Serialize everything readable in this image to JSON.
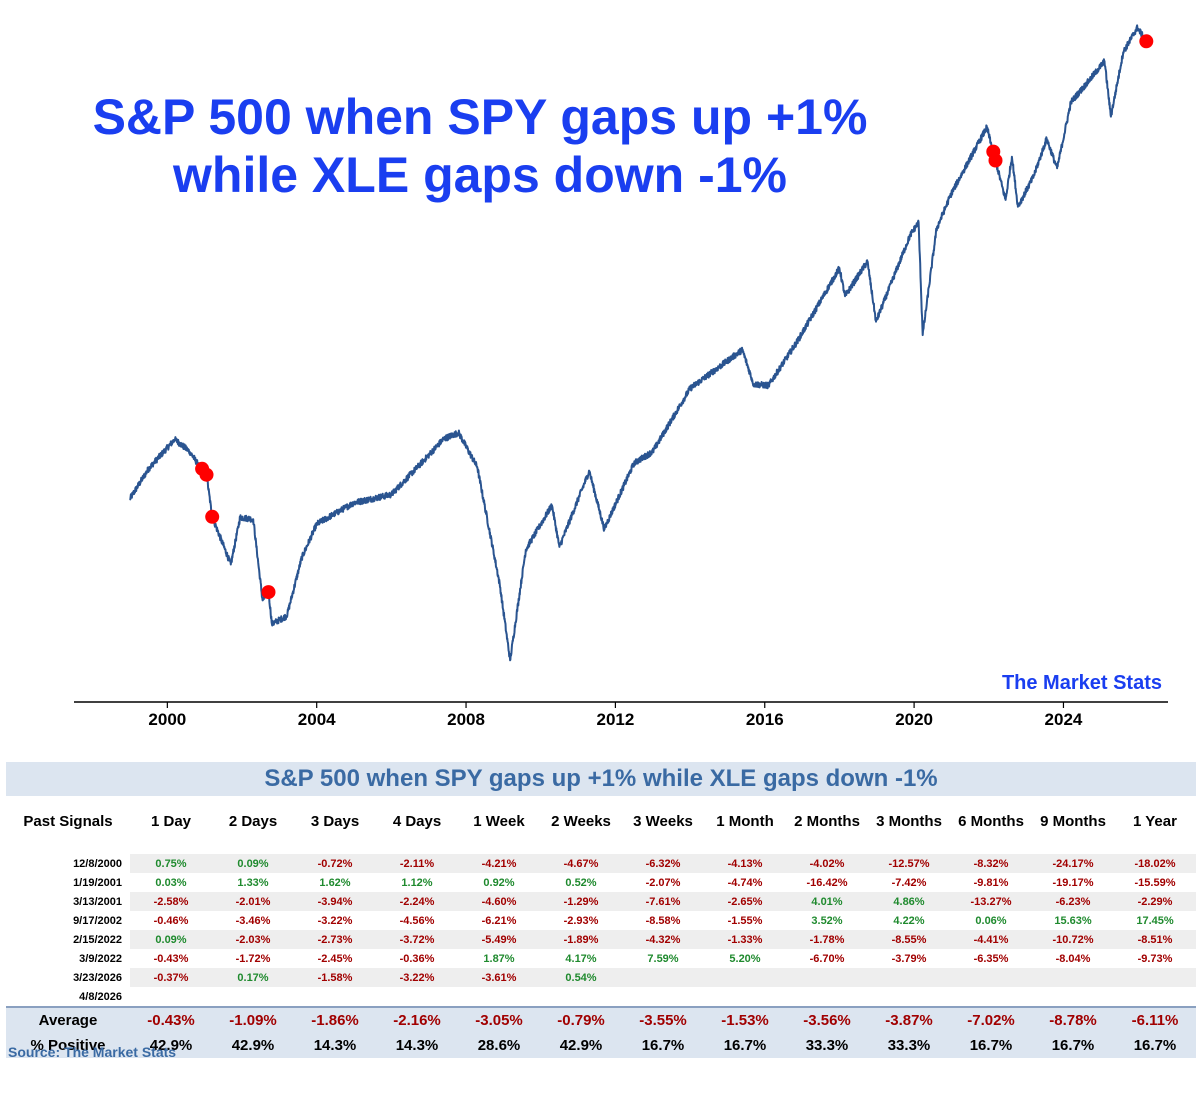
{
  "headline": {
    "line1": "S&P 500 when SPY gaps up +1%",
    "line2": "while XLE gaps down -1%"
  },
  "watermark": "The Market Stats",
  "colors": {
    "line": "#2a5490",
    "signal_marker": "#ff0000",
    "headline": "#1a3ef0",
    "positive": "#1f8a2e",
    "negative": "#a10000",
    "table_header_bg": "#dce5f0"
  },
  "chart_data": {
    "type": "line",
    "series": [
      {
        "values": [
          {
            "x": 1999.0,
            "y": 1229
          },
          {
            "x": 1999.5,
            "y": 1372
          },
          {
            "x": 2000.2,
            "y": 1527
          },
          {
            "x": 2000.6,
            "y": 1460
          },
          {
            "x": 2000.9,
            "y": 1371
          },
          {
            "x": 2001.05,
            "y": 1342
          },
          {
            "x": 2001.2,
            "y": 1150
          },
          {
            "x": 2001.7,
            "y": 966
          },
          {
            "x": 2001.95,
            "y": 1148
          },
          {
            "x": 2002.3,
            "y": 1140
          },
          {
            "x": 2002.55,
            "y": 847
          },
          {
            "x": 2002.71,
            "y": 873
          },
          {
            "x": 2002.8,
            "y": 777
          },
          {
            "x": 2003.2,
            "y": 800
          },
          {
            "x": 2003.6,
            "y": 990
          },
          {
            "x": 2004.0,
            "y": 1120
          },
          {
            "x": 2005.0,
            "y": 1211
          },
          {
            "x": 2006.0,
            "y": 1248
          },
          {
            "x": 2006.9,
            "y": 1420
          },
          {
            "x": 2007.4,
            "y": 1530
          },
          {
            "x": 2007.8,
            "y": 1565
          },
          {
            "x": 2008.3,
            "y": 1380
          },
          {
            "x": 2008.9,
            "y": 900
          },
          {
            "x": 2009.18,
            "y": 680
          },
          {
            "x": 2009.6,
            "y": 1020
          },
          {
            "x": 2010.3,
            "y": 1200
          },
          {
            "x": 2010.5,
            "y": 1030
          },
          {
            "x": 2011.3,
            "y": 1360
          },
          {
            "x": 2011.7,
            "y": 1100
          },
          {
            "x": 2012.5,
            "y": 1400
          },
          {
            "x": 2013.0,
            "y": 1460
          },
          {
            "x": 2014.0,
            "y": 1840
          },
          {
            "x": 2015.4,
            "y": 2120
          },
          {
            "x": 2015.7,
            "y": 1870
          },
          {
            "x": 2016.1,
            "y": 1860
          },
          {
            "x": 2016.9,
            "y": 2200
          },
          {
            "x": 2018.0,
            "y": 2860
          },
          {
            "x": 2018.15,
            "y": 2580
          },
          {
            "x": 2018.75,
            "y": 2930
          },
          {
            "x": 2018.98,
            "y": 2350
          },
          {
            "x": 2019.9,
            "y": 3230
          },
          {
            "x": 2020.12,
            "y": 3380
          },
          {
            "x": 2020.23,
            "y": 2237
          },
          {
            "x": 2020.6,
            "y": 3300
          },
          {
            "x": 2021.0,
            "y": 3760
          },
          {
            "x": 2021.95,
            "y": 4790
          },
          {
            "x": 2022.05,
            "y": 4530
          },
          {
            "x": 2022.12,
            "y": 4380
          },
          {
            "x": 2022.18,
            "y": 4240
          },
          {
            "x": 2022.45,
            "y": 3670
          },
          {
            "x": 2022.62,
            "y": 4300
          },
          {
            "x": 2022.78,
            "y": 3580
          },
          {
            "x": 2023.2,
            "y": 4000
          },
          {
            "x": 2023.55,
            "y": 4590
          },
          {
            "x": 2023.83,
            "y": 4120
          },
          {
            "x": 2024.2,
            "y": 5250
          },
          {
            "x": 2024.6,
            "y": 5600
          },
          {
            "x": 2025.1,
            "y": 6100
          },
          {
            "x": 2025.27,
            "y": 4980
          },
          {
            "x": 2025.6,
            "y": 6300
          },
          {
            "x": 2025.98,
            "y": 6900
          },
          {
            "x": 2026.15,
            "y": 6650
          },
          {
            "x": 2026.22,
            "y": 6560
          },
          {
            "x": 2026.27,
            "y": 6500
          }
        ]
      }
    ],
    "signals": [
      {
        "x": 2000.93,
        "y": 1371
      },
      {
        "x": 2001.05,
        "y": 1342
      },
      {
        "x": 2001.2,
        "y": 1150
      },
      {
        "x": 2002.71,
        "y": 873
      },
      {
        "x": 2022.12,
        "y": 4380
      },
      {
        "x": 2022.18,
        "y": 4240
      },
      {
        "x": 2026.22,
        "y": 6560
      }
    ],
    "xlim": [
      1997.5,
      2026.8
    ],
    "x_ticks": [
      "2000",
      "2004",
      "2008",
      "2012",
      "2016",
      "2020",
      "2024"
    ],
    "x_tick_values": [
      2000,
      2004,
      2008,
      2012,
      2016,
      2020,
      2024
    ],
    "y_scale": "log",
    "ylim": [
      610,
      7250
    ],
    "y_axis_shown": false,
    "grid": false,
    "xlabel": "",
    "ylabel": ""
  },
  "table": {
    "title": "S&P 500 when SPY gaps up +1% while XLE gaps down -1%",
    "columns": [
      "Past Signals",
      "1 Day",
      "2 Days",
      "3 Days",
      "4 Days",
      "1 Week",
      "2 Weeks",
      "3 Weeks",
      "1 Month",
      "2 Months",
      "3 Months",
      "6 Months",
      "9 Months",
      "1 Year"
    ],
    "rows": [
      {
        "date": "12/8/2000",
        "values": [
          "0.75%",
          "0.09%",
          "-0.72%",
          "-2.11%",
          "-4.21%",
          "-4.67%",
          "-6.32%",
          "-4.13%",
          "-4.02%",
          "-12.57%",
          "-8.32%",
          "-24.17%",
          "-18.02%"
        ]
      },
      {
        "date": "1/19/2001",
        "values": [
          "0.03%",
          "1.33%",
          "1.62%",
          "1.12%",
          "0.92%",
          "0.52%",
          "-2.07%",
          "-4.74%",
          "-16.42%",
          "-7.42%",
          "-9.81%",
          "-19.17%",
          "-15.59%"
        ]
      },
      {
        "date": "3/13/2001",
        "values": [
          "-2.58%",
          "-2.01%",
          "-3.94%",
          "-2.24%",
          "-4.60%",
          "-1.29%",
          "-7.61%",
          "-2.65%",
          "4.01%",
          "4.86%",
          "-13.27%",
          "-6.23%",
          "-2.29%"
        ]
      },
      {
        "date": "9/17/2002",
        "values": [
          "-0.46%",
          "-3.46%",
          "-3.22%",
          "-4.56%",
          "-6.21%",
          "-2.93%",
          "-8.58%",
          "-1.55%",
          "3.52%",
          "4.22%",
          "0.06%",
          "15.63%",
          "17.45%"
        ]
      },
      {
        "date": "2/15/2022",
        "values": [
          "0.09%",
          "-2.03%",
          "-2.73%",
          "-3.72%",
          "-5.49%",
          "-1.89%",
          "-4.32%",
          "-1.33%",
          "-1.78%",
          "-8.55%",
          "-4.41%",
          "-10.72%",
          "-8.51%"
        ]
      },
      {
        "date": "3/9/2022",
        "values": [
          "-0.43%",
          "-1.72%",
          "-2.45%",
          "-0.36%",
          "1.87%",
          "4.17%",
          "7.59%",
          "5.20%",
          "-6.70%",
          "-3.79%",
          "-6.35%",
          "-8.04%",
          "-9.73%"
        ]
      },
      {
        "date": "3/23/2026",
        "values": [
          "-0.37%",
          "0.17%",
          "-1.58%",
          "-3.22%",
          "-3.61%",
          "0.54%",
          "",
          "",
          "",
          "",
          "",
          "",
          ""
        ]
      },
      {
        "date": "4/8/2026",
        "values": [
          "",
          "",
          "",
          "",
          "",
          "",
          "",
          "",
          "",
          "",
          "",
          "",
          ""
        ]
      }
    ],
    "average_label": "Average",
    "average": [
      "-0.43%",
      "-1.09%",
      "-1.86%",
      "-2.16%",
      "-3.05%",
      "-0.79%",
      "-3.55%",
      "-1.53%",
      "-3.56%",
      "-3.87%",
      "-7.02%",
      "-8.78%",
      "-6.11%"
    ],
    "positive_label": "% Positive",
    "positive": [
      "42.9%",
      "42.9%",
      "14.3%",
      "14.3%",
      "28.6%",
      "42.9%",
      "16.7%",
      "16.7%",
      "33.3%",
      "33.3%",
      "16.7%",
      "16.7%",
      "16.7%"
    ]
  },
  "source": "Source: The Market Stats"
}
